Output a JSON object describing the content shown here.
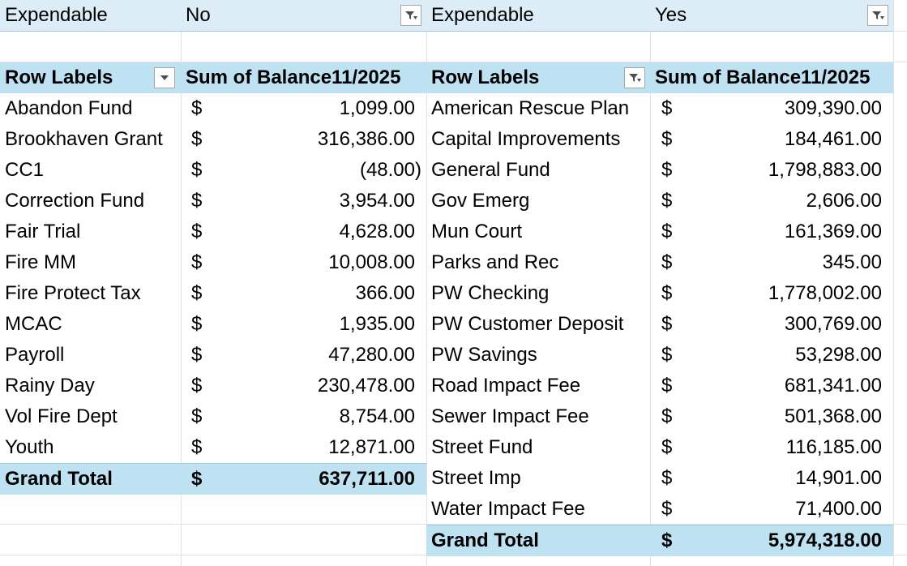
{
  "left_pivot": {
    "filter": {
      "field": "Expendable",
      "value": "No"
    },
    "header": {
      "row_labels": "Row Labels",
      "sum_field": "Sum of Balance11/2025"
    },
    "rows": [
      {
        "label": "Abandon Fund",
        "currency": "$",
        "amount": "1,099.00"
      },
      {
        "label": "Brookhaven Grant",
        "currency": "$",
        "amount": "316,386.00"
      },
      {
        "label": "CC1",
        "currency": "$",
        "amount": "(48.00)"
      },
      {
        "label": "Correction Fund",
        "currency": "$",
        "amount": "3,954.00"
      },
      {
        "label": "Fair Trial",
        "currency": "$",
        "amount": "4,628.00"
      },
      {
        "label": "Fire MM",
        "currency": "$",
        "amount": "10,008.00"
      },
      {
        "label": "Fire Protect Tax",
        "currency": "$",
        "amount": "366.00"
      },
      {
        "label": "MCAC",
        "currency": "$",
        "amount": "1,935.00"
      },
      {
        "label": "Payroll",
        "currency": "$",
        "amount": "47,280.00"
      },
      {
        "label": "Rainy Day",
        "currency": "$",
        "amount": "230,478.00"
      },
      {
        "label": "Vol Fire Dept",
        "currency": "$",
        "amount": "8,754.00"
      },
      {
        "label": "Youth",
        "currency": "$",
        "amount": "12,871.00"
      }
    ],
    "total": {
      "label": "Grand Total",
      "currency": "$",
      "amount": "637,711.00"
    }
  },
  "right_pivot": {
    "filter": {
      "field": "Expendable",
      "value": "Yes"
    },
    "header": {
      "row_labels": "Row Labels",
      "sum_field": "Sum of Balance11/2025"
    },
    "rows": [
      {
        "label": "American Rescue Plan",
        "currency": "$",
        "amount": "309,390.00"
      },
      {
        "label": "Capital Improvements",
        "currency": "$",
        "amount": "184,461.00"
      },
      {
        "label": "General Fund",
        "currency": "$",
        "amount": "1,798,883.00"
      },
      {
        "label": "Gov Emerg",
        "currency": "$",
        "amount": "2,606.00"
      },
      {
        "label": "Mun Court",
        "currency": "$",
        "amount": "161,369.00"
      },
      {
        "label": "Parks and Rec",
        "currency": "$",
        "amount": "345.00"
      },
      {
        "label": "PW Checking",
        "currency": "$",
        "amount": "1,778,002.00"
      },
      {
        "label": "PW Customer Deposit",
        "currency": "$",
        "amount": "300,769.00"
      },
      {
        "label": "PW Savings",
        "currency": "$",
        "amount": "53,298.00"
      },
      {
        "label": "Road Impact Fee",
        "currency": "$",
        "amount": "681,341.00"
      },
      {
        "label": "Sewer Impact Fee",
        "currency": "$",
        "amount": "501,368.00"
      },
      {
        "label": "Street Fund",
        "currency": "$",
        "amount": "116,185.00"
      },
      {
        "label": "Street Imp",
        "currency": "$",
        "amount": "14,901.00"
      },
      {
        "label": "Water Impact Fee",
        "currency": "$",
        "amount": "71,400.00"
      }
    ],
    "total": {
      "label": "Grand Total",
      "currency": "$",
      "amount": "5,974,318.00"
    }
  },
  "icons": {
    "filter_applied": "filter-funnel-icon",
    "row_label_dropdown": "chevron-down-icon"
  }
}
